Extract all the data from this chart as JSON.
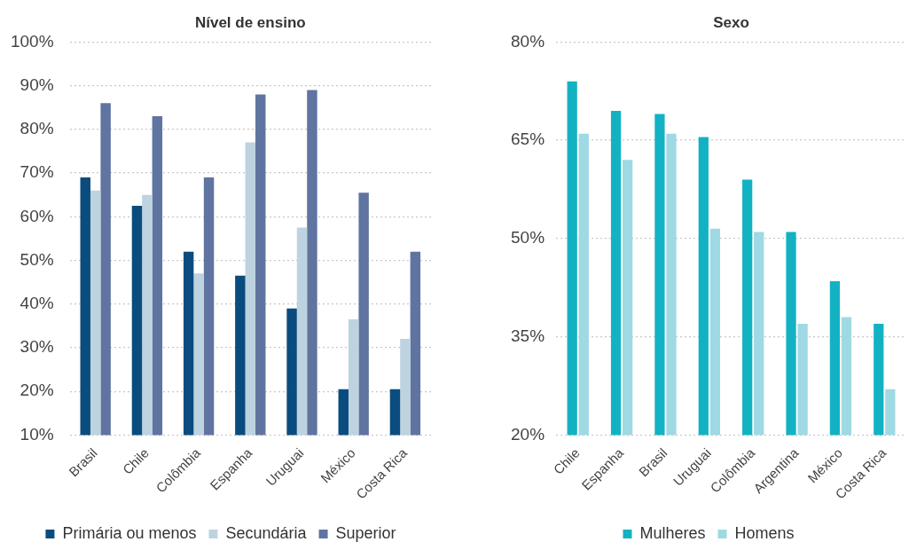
{
  "chart_data": [
    {
      "type": "bar",
      "title": "Nível de ensino",
      "categories": [
        "Brasil",
        "Chile",
        "Colômbia",
        "Espanha",
        "Uruguai",
        "México",
        "Costa Rica"
      ],
      "series": [
        {
          "name": "Primária ou menos",
          "color": "#0b4c7e",
          "values": [
            69,
            62.5,
            52,
            46.5,
            39,
            20.5,
            20.5
          ]
        },
        {
          "name": "Secundária",
          "color": "#bdd3e0",
          "values": [
            66,
            65,
            47,
            77,
            57.5,
            36.5,
            32
          ]
        },
        {
          "name": "Superior",
          "color": "#5f74a0",
          "values": [
            86,
            83,
            69,
            88,
            89,
            65.5,
            52
          ]
        }
      ],
      "ylim": [
        10,
        100
      ],
      "yticks": [
        {
          "value": 10,
          "label": "10%"
        },
        {
          "value": 20,
          "label": "20%"
        },
        {
          "value": 30,
          "label": "30%"
        },
        {
          "value": 40,
          "label": "40%"
        },
        {
          "value": 50,
          "label": "50%"
        },
        {
          "value": 60,
          "label": "60%"
        },
        {
          "value": 70,
          "label": "70%"
        },
        {
          "value": 80,
          "label": "80%"
        },
        {
          "value": 90,
          "label": "90%"
        },
        {
          "value": 100,
          "label": "100%"
        }
      ],
      "grid": "y",
      "legend": "bottom"
    },
    {
      "type": "bar",
      "title": "Sexo",
      "categories": [
        "Chile",
        "Espanha",
        "Brasil",
        "Uruguai",
        "Colômbia",
        "Argentina",
        "México",
        "Costa Rica"
      ],
      "series": [
        {
          "name": "Mulheres",
          "color": "#13b2c3",
          "values": [
            74,
            69.5,
            69,
            65.5,
            59,
            51,
            43.5,
            37
          ]
        },
        {
          "name": "Homens",
          "color": "#9fd9e3",
          "values": [
            66,
            62,
            66,
            51.5,
            51,
            37,
            38,
            27
          ]
        }
      ],
      "ylim": [
        20,
        80
      ],
      "yticks": [
        {
          "value": 20,
          "label": "20%"
        },
        {
          "value": 35,
          "label": "35%"
        },
        {
          "value": 50,
          "label": "50%"
        },
        {
          "value": 65,
          "label": "65%"
        },
        {
          "value": 80,
          "label": "80%"
        }
      ],
      "grid": "y",
      "legend": "bottom"
    }
  ]
}
